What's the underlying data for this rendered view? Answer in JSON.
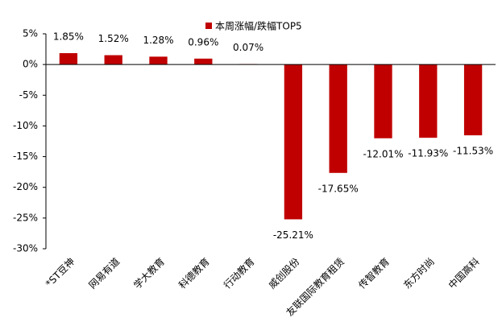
{
  "chart_data": {
    "type": "bar",
    "categories": [
      "*ST豆神",
      "网易有道",
      "学大教育",
      "科德教育",
      "行动教育",
      "威创股份",
      "友联国际教育租赁",
      "传智教育",
      "东方时尚",
      "中国高科"
    ],
    "series": [
      {
        "name": "本周涨幅/跌幅TOP5",
        "color": "#c00000",
        "values": [
          1.85,
          1.52,
          1.28,
          0.96,
          0.07,
          -25.21,
          -17.65,
          -12.01,
          -11.93,
          -11.53
        ],
        "value_labels": [
          "1.85%",
          "1.52%",
          "1.28%",
          "0.96%",
          "0.07%",
          "-25.21%",
          "-17.65%",
          "-12.01%",
          "-11.93%",
          "-11.53%"
        ]
      }
    ],
    "ylim": [
      -30,
      5
    ],
    "yticks": [
      {
        "value": 5,
        "label": "5%"
      },
      {
        "value": 0,
        "label": "0%"
      },
      {
        "value": -5,
        "label": "-5%"
      },
      {
        "value": -10,
        "label": "-10%"
      },
      {
        "value": -15,
        "label": "-15%"
      },
      {
        "value": -20,
        "label": "-20%"
      },
      {
        "value": -25,
        "label": "-25%"
      },
      {
        "value": -30,
        "label": "-30%"
      }
    ],
    "legend": "top"
  }
}
